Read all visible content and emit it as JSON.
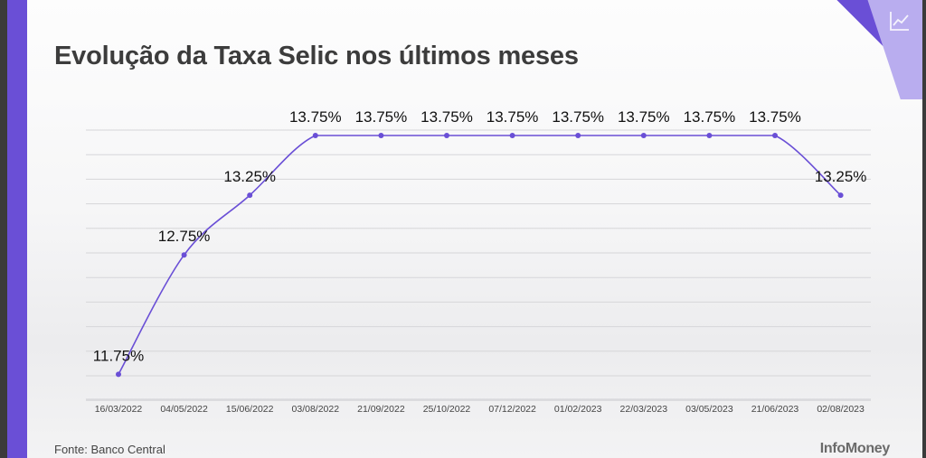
{
  "title": "Evolução da Taxa Selic nos últimos meses",
  "source": "Fonte: Banco Central",
  "brand": "InfoMoney",
  "icons": {
    "corner": "chart-line-icon"
  },
  "colors": {
    "accent": "#6a4fd6",
    "line": "#6a4fd6",
    "text": "#3c3c3c"
  },
  "chart_data": {
    "type": "line",
    "title": "Evolução da Taxa Selic nos últimos meses",
    "xlabel": "",
    "ylabel": "",
    "categories": [
      "16/03/2022",
      "04/05/2022",
      "15/06/2022",
      "03/08/2022",
      "21/09/2022",
      "25/10/2022",
      "07/12/2022",
      "01/02/2023",
      "22/03/2023",
      "03/05/2023",
      "21/06/2023",
      "02/08/2023"
    ],
    "labels": [
      "11.75%",
      "12.75%",
      "13.25%",
      "13.75%",
      "13.75%",
      "13.75%",
      "13.75%",
      "13.75%",
      "13.75%",
      "13.75%",
      "13.75%",
      "13.25%"
    ],
    "series": [
      {
        "values": [
          11.75,
          12.75,
          13.25,
          13.75,
          13.75,
          13.75,
          13.75,
          13.75,
          13.75,
          13.75,
          13.75,
          13.25
        ]
      }
    ],
    "ylim": [
      11.7,
      13.75
    ],
    "grid": true,
    "legend": "none"
  }
}
